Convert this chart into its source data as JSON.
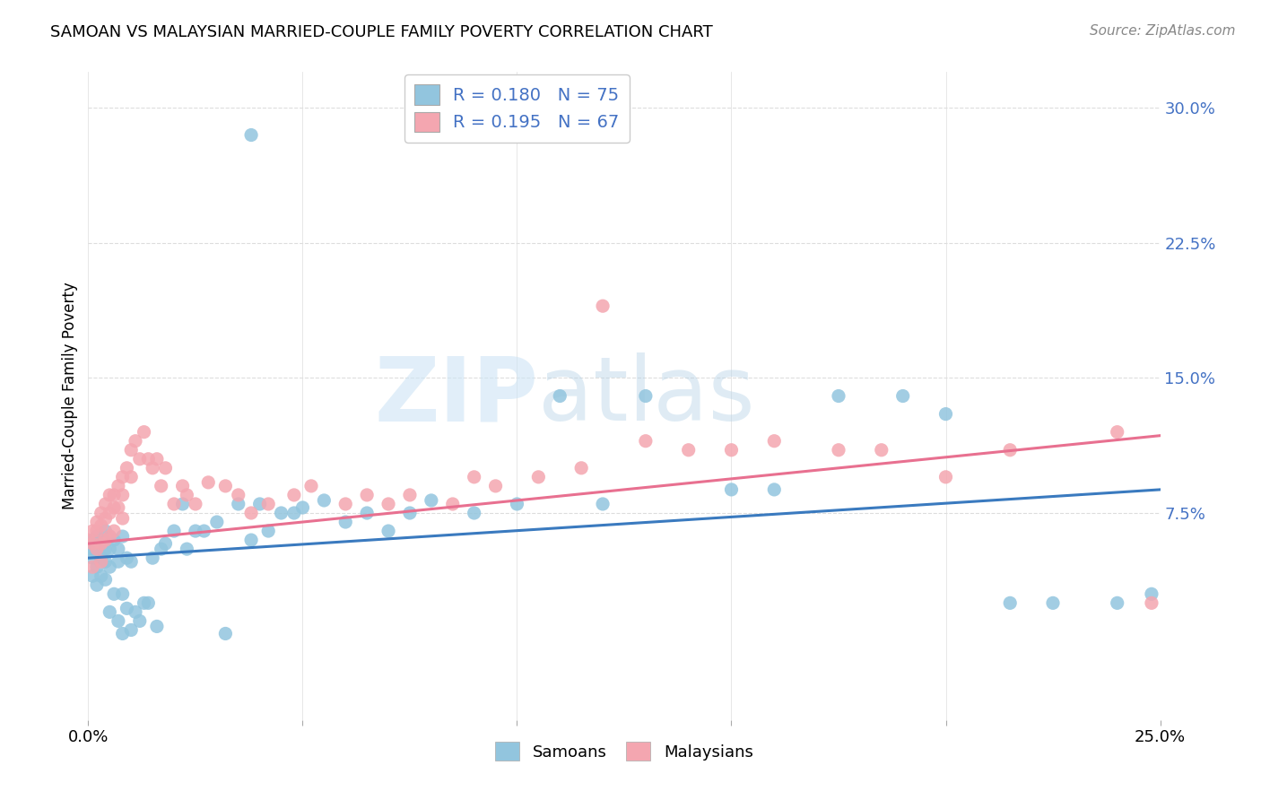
{
  "title": "SAMOAN VS MALAYSIAN MARRIED-COUPLE FAMILY POVERTY CORRELATION CHART",
  "source": "Source: ZipAtlas.com",
  "ylabel": "Married-Couple Family Poverty",
  "ytick_labels": [
    "7.5%",
    "15.0%",
    "22.5%",
    "30.0%"
  ],
  "ytick_values": [
    0.075,
    0.15,
    0.225,
    0.3
  ],
  "xlim": [
    0.0,
    0.25
  ],
  "ylim": [
    -0.04,
    0.32
  ],
  "watermark_zip": "ZIP",
  "watermark_atlas": "atlas",
  "legend_r1": "R = 0.180",
  "legend_n1": "N = 75",
  "legend_r2": "R = 0.195",
  "legend_n2": "N = 67",
  "samoan_color": "#92c5de",
  "malaysian_color": "#f4a6b0",
  "trendline_samoan_color": "#3a7abf",
  "trendline_malaysian_color": "#e87090",
  "samoan_x": [
    0.0,
    0.001,
    0.001,
    0.001,
    0.001,
    0.002,
    0.002,
    0.002,
    0.002,
    0.003,
    0.003,
    0.003,
    0.004,
    0.004,
    0.004,
    0.004,
    0.005,
    0.005,
    0.005,
    0.005,
    0.006,
    0.006,
    0.007,
    0.007,
    0.007,
    0.008,
    0.008,
    0.008,
    0.009,
    0.009,
    0.01,
    0.01,
    0.011,
    0.012,
    0.013,
    0.014,
    0.015,
    0.016,
    0.017,
    0.018,
    0.02,
    0.022,
    0.023,
    0.025,
    0.027,
    0.03,
    0.032,
    0.035,
    0.038,
    0.038,
    0.04,
    0.042,
    0.045,
    0.048,
    0.05,
    0.055,
    0.06,
    0.065,
    0.07,
    0.075,
    0.08,
    0.09,
    0.1,
    0.11,
    0.12,
    0.13,
    0.15,
    0.16,
    0.175,
    0.19,
    0.2,
    0.215,
    0.225,
    0.24,
    0.248
  ],
  "samoan_y": [
    0.055,
    0.06,
    0.055,
    0.05,
    0.04,
    0.062,
    0.055,
    0.045,
    0.035,
    0.06,
    0.05,
    0.04,
    0.065,
    0.055,
    0.048,
    0.038,
    0.062,
    0.055,
    0.045,
    0.02,
    0.06,
    0.03,
    0.055,
    0.048,
    0.015,
    0.062,
    0.03,
    0.008,
    0.05,
    0.022,
    0.048,
    0.01,
    0.02,
    0.015,
    0.025,
    0.025,
    0.05,
    0.012,
    0.055,
    0.058,
    0.065,
    0.08,
    0.055,
    0.065,
    0.065,
    0.07,
    0.008,
    0.08,
    0.285,
    0.06,
    0.08,
    0.065,
    0.075,
    0.075,
    0.078,
    0.082,
    0.07,
    0.075,
    0.065,
    0.075,
    0.082,
    0.075,
    0.08,
    0.14,
    0.08,
    0.14,
    0.088,
    0.088,
    0.14,
    0.14,
    0.13,
    0.025,
    0.025,
    0.025,
    0.03
  ],
  "malaysian_x": [
    0.0,
    0.001,
    0.001,
    0.001,
    0.002,
    0.002,
    0.002,
    0.003,
    0.003,
    0.003,
    0.003,
    0.004,
    0.004,
    0.004,
    0.005,
    0.005,
    0.005,
    0.006,
    0.006,
    0.006,
    0.007,
    0.007,
    0.008,
    0.008,
    0.008,
    0.009,
    0.01,
    0.01,
    0.011,
    0.012,
    0.013,
    0.014,
    0.015,
    0.016,
    0.017,
    0.018,
    0.02,
    0.022,
    0.023,
    0.025,
    0.028,
    0.032,
    0.035,
    0.038,
    0.042,
    0.048,
    0.052,
    0.06,
    0.065,
    0.07,
    0.075,
    0.085,
    0.09,
    0.095,
    0.105,
    0.115,
    0.12,
    0.13,
    0.14,
    0.15,
    0.16,
    0.175,
    0.185,
    0.2,
    0.215,
    0.24,
    0.248
  ],
  "malaysian_y": [
    0.06,
    0.065,
    0.058,
    0.045,
    0.07,
    0.065,
    0.055,
    0.075,
    0.068,
    0.058,
    0.048,
    0.08,
    0.072,
    0.06,
    0.085,
    0.075,
    0.062,
    0.085,
    0.078,
    0.065,
    0.09,
    0.078,
    0.095,
    0.085,
    0.072,
    0.1,
    0.11,
    0.095,
    0.115,
    0.105,
    0.12,
    0.105,
    0.1,
    0.105,
    0.09,
    0.1,
    0.08,
    0.09,
    0.085,
    0.08,
    0.092,
    0.09,
    0.085,
    0.075,
    0.08,
    0.085,
    0.09,
    0.08,
    0.085,
    0.08,
    0.085,
    0.08,
    0.095,
    0.09,
    0.095,
    0.1,
    0.19,
    0.115,
    0.11,
    0.11,
    0.115,
    0.11,
    0.11,
    0.095,
    0.11,
    0.12,
    0.025
  ],
  "trendline_samoan_x0": 0.0,
  "trendline_samoan_x1": 0.25,
  "trendline_samoan_y0": 0.05,
  "trendline_samoan_y1": 0.088,
  "trendline_malaysian_x0": 0.0,
  "trendline_malaysian_x1": 0.25,
  "trendline_malaysian_y0": 0.058,
  "trendline_malaysian_y1": 0.118
}
